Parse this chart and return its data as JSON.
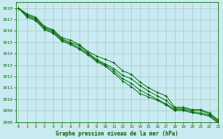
{
  "xlabel": "Graphe pression niveau de la mer (hPa)",
  "bg_color": "#c8eaf0",
  "grid_color": "#a0c8c8",
  "line_color": "#006600",
  "ylim": [
    1008,
    1018.5
  ],
  "xlim": [
    -0.3,
    23
  ],
  "yticks": [
    1008,
    1009,
    1010,
    1011,
    1012,
    1013,
    1014,
    1015,
    1016,
    1017,
    1018
  ],
  "xticks": [
    0,
    1,
    2,
    3,
    4,
    5,
    6,
    7,
    8,
    9,
    10,
    11,
    12,
    13,
    14,
    15,
    16,
    17,
    18,
    19,
    20,
    21,
    22,
    23
  ],
  "series": [
    [
      1018.0,
      1017.5,
      1017.2,
      1016.4,
      1016.1,
      1015.4,
      1015.2,
      1014.8,
      1014.2,
      1013.8,
      1013.5,
      1013.2,
      1012.5,
      1012.2,
      1011.5,
      1011.0,
      1010.6,
      1010.3,
      1009.3,
      1009.3,
      1009.1,
      1009.1,
      1008.8,
      1008.2
    ],
    [
      1018.0,
      1017.4,
      1017.1,
      1016.3,
      1016.0,
      1015.3,
      1015.0,
      1014.7,
      1014.1,
      1013.5,
      1013.1,
      1012.7,
      1012.1,
      1011.8,
      1011.2,
      1010.7,
      1010.3,
      1009.9,
      1009.2,
      1009.2,
      1009.0,
      1009.0,
      1008.7,
      1008.1
    ],
    [
      1018.0,
      1017.3,
      1017.0,
      1016.2,
      1015.9,
      1015.2,
      1014.9,
      1014.5,
      1014.0,
      1013.4,
      1013.0,
      1012.5,
      1011.8,
      1011.4,
      1010.8,
      1010.4,
      1010.0,
      1009.6,
      1009.1,
      1009.1,
      1008.9,
      1008.8,
      1008.6,
      1008.0
    ],
    [
      1018.0,
      1017.2,
      1016.9,
      1016.1,
      1015.8,
      1015.1,
      1014.8,
      1014.4,
      1013.9,
      1013.3,
      1012.9,
      1012.3,
      1011.6,
      1011.1,
      1010.5,
      1010.2,
      1009.9,
      1009.5,
      1009.0,
      1009.0,
      1008.8,
      1008.7,
      1008.5,
      1007.9
    ]
  ]
}
